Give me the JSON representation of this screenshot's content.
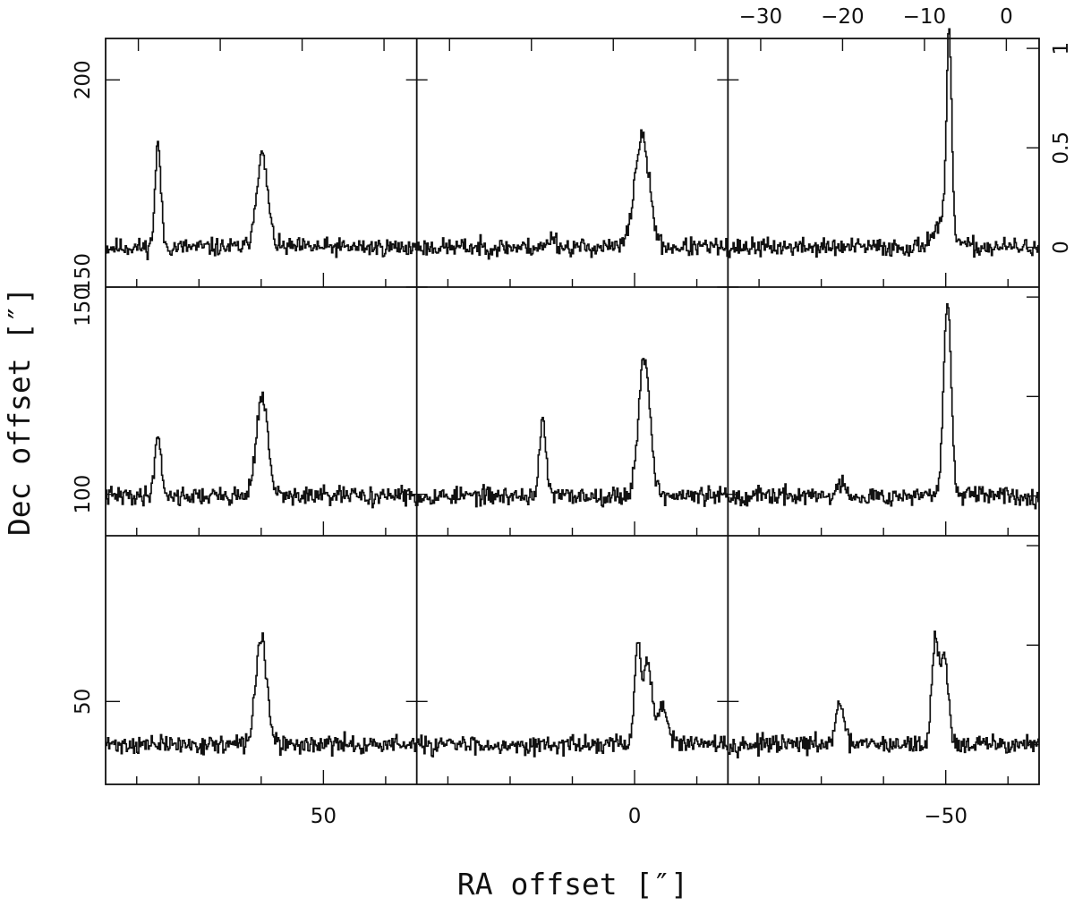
{
  "chart_data": {
    "type": "line",
    "layout": "3x3 grid of spectra",
    "xlabel": "RA offset [″]",
    "ylabel": "Dec offset [″]",
    "x_tick_labels": [
      "50",
      "0",
      "−50"
    ],
    "y_tick_labels": [
      "200",
      "150",
      "150",
      "100",
      "50"
    ],
    "top_tick_labels": [
      "−30",
      "−20",
      "−10",
      "0"
    ],
    "right_tick_labels": [
      "1",
      "0.5",
      "0"
    ],
    "ra_cells": [
      60,
      10,
      -40
    ],
    "dec_cells": [
      150,
      100,
      50
    ],
    "ra_range": [
      85,
      -65
    ],
    "dec_range": [
      30,
      210
    ],
    "inset_velocity_range": [
      -34,
      4
    ],
    "inset_intensity_range": [
      -0.2,
      1.05
    ],
    "grid": false,
    "legend": "none",
    "panels": [
      {
        "row": 0,
        "col": 0,
        "dec": 150,
        "ra": 60,
        "noise_seed": 11,
        "lines": [
          {
            "v": -27.6,
            "peak": 0.52,
            "width": 0.35
          },
          {
            "v": -14.9,
            "peak": 0.46,
            "width": 0.7
          }
        ]
      },
      {
        "row": 0,
        "col": 1,
        "dec": 150,
        "ra": 10,
        "noise_seed": 23,
        "lines": [
          {
            "v": -17.4,
            "peak": 0.06,
            "width": 0.4
          },
          {
            "v": -6.5,
            "peak": 0.55,
            "width": 0.9
          }
        ]
      },
      {
        "row": 0,
        "col": 2,
        "dec": 150,
        "ra": -40,
        "noise_seed": 37,
        "lines": [
          {
            "v": -7.0,
            "peak": 1.0,
            "width": 0.3
          },
          {
            "v": -7.7,
            "peak": 0.12,
            "width": 1.2
          }
        ]
      },
      {
        "row": 1,
        "col": 0,
        "dec": 100,
        "ra": 60,
        "noise_seed": 41,
        "lines": [
          {
            "v": -27.6,
            "peak": 0.3,
            "width": 0.4
          },
          {
            "v": -14.9,
            "peak": 0.5,
            "width": 0.7
          }
        ]
      },
      {
        "row": 1,
        "col": 1,
        "dec": 100,
        "ra": 10,
        "noise_seed": 53,
        "lines": [
          {
            "v": -18.6,
            "peak": 0.37,
            "width": 0.4
          },
          {
            "v": -6.2,
            "peak": 0.7,
            "width": 0.7
          }
        ]
      },
      {
        "row": 1,
        "col": 2,
        "dec": 100,
        "ra": -40,
        "noise_seed": 67,
        "lines": [
          {
            "v": -7.2,
            "peak": 1.0,
            "width": 0.45
          },
          {
            "v": -20.0,
            "peak": 0.07,
            "width": 0.5
          }
        ]
      },
      {
        "row": 2,
        "col": 0,
        "dec": 50,
        "ra": 60,
        "noise_seed": 71,
        "lines": [
          {
            "v": -15.0,
            "peak": 0.55,
            "width": 0.65
          }
        ]
      },
      {
        "row": 2,
        "col": 1,
        "dec": 50,
        "ra": 10,
        "noise_seed": 83,
        "lines": [
          {
            "v": -7.0,
            "peak": 0.48,
            "width": 0.4
          },
          {
            "v": -5.8,
            "peak": 0.42,
            "width": 0.5
          },
          {
            "v": -4.0,
            "peak": 0.2,
            "width": 0.6
          }
        ]
      },
      {
        "row": 2,
        "col": 2,
        "dec": 50,
        "ra": -40,
        "noise_seed": 97,
        "lines": [
          {
            "v": -8.7,
            "peak": 0.5,
            "width": 0.4
          },
          {
            "v": -7.6,
            "peak": 0.44,
            "width": 0.5
          },
          {
            "v": -20.3,
            "peak": 0.22,
            "width": 0.45
          }
        ]
      }
    ]
  }
}
